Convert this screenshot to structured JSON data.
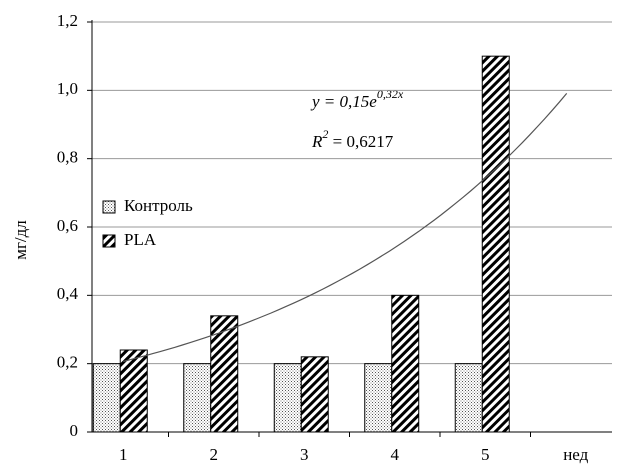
{
  "chart_data": {
    "type": "bar",
    "categories": [
      "1",
      "2",
      "3",
      "4",
      "5"
    ],
    "xlabel": "нед",
    "ylabel": "мг/дл",
    "series": [
      {
        "name": "Контроль",
        "pattern": "dots",
        "values": [
          0.2,
          0.2,
          0.2,
          0.2,
          0.2
        ]
      },
      {
        "name": "PLA",
        "pattern": "hatch",
        "values": [
          0.24,
          0.34,
          0.22,
          0.4,
          1.1
        ]
      }
    ],
    "ylim": [
      0,
      1.2
    ],
    "yticks": [
      0,
      {
        "value": 0.2,
        "label": "0,2"
      },
      {
        "value": 0.4,
        "label": "0,4"
      },
      {
        "value": 0.6,
        "label": "0,6"
      },
      {
        "value": 0.8,
        "label": "0,8"
      },
      {
        "value": 1.0,
        "label": "1,0"
      },
      {
        "value": 1.2,
        "label": "1,2"
      }
    ],
    "grid": true,
    "legend": "left",
    "trendline": {
      "type": "exponential",
      "a": 0.15,
      "b": 0.32,
      "x_range": [
        1,
        5.9
      ]
    },
    "annotation": {
      "eq_left": "y = 0,15e",
      "eq_exp": "0,32x",
      "r_left": "R",
      "r_exp": "2",
      "r_right": " = 0,6217"
    }
  }
}
